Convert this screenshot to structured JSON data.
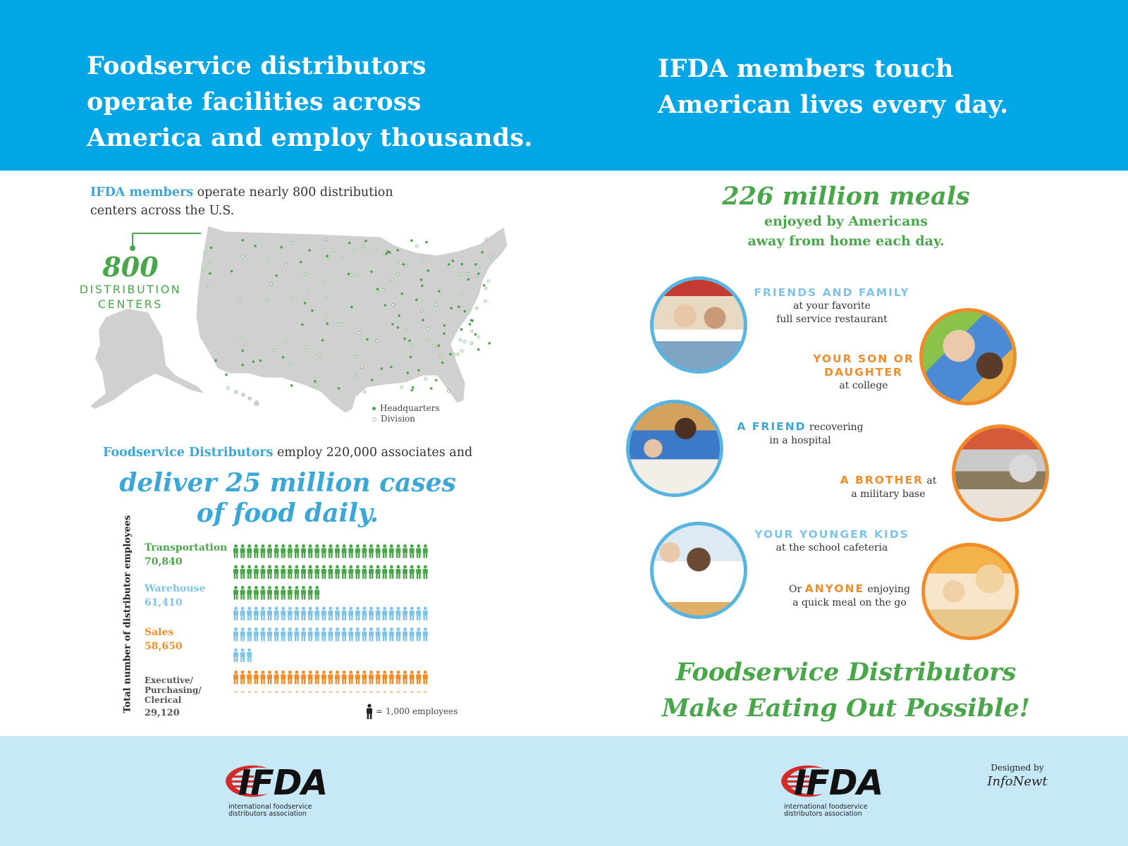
{
  "header": {
    "left_title": "Foodservice distributors\noperate facilities across\nAmerica and employ thousands.",
    "right_title": "IFDA members touch\nAmerican lives every day."
  },
  "colors": {
    "header_blue": "#00a6e6",
    "green": "#4aa64a",
    "light_blue": "#7fc4e6",
    "blue": "#3aa7d6",
    "orange": "#f08c2a",
    "gray": "#7a7a7a",
    "footer": "#c6e8f7",
    "logo_red": "#d42a2a"
  },
  "left": {
    "intro_highlight": "IFDA members",
    "intro_rest": " operate nearly 800 distribution centers across the U.S.",
    "callout_number": "800",
    "callout_label": "DISTRIBUTION\nCENTERS",
    "map_icon": "us-map-with-distribution-center-dots",
    "legend": [
      {
        "label": "Headquarters",
        "color": "#4aa64a"
      },
      {
        "label": "Division",
        "color": "#c8c8c8"
      }
    ],
    "employ_highlight": "Foodservice Distributors",
    "employ_rest": " employ 220,000 associates and",
    "deliver": "deliver 25 million cases\nof food daily."
  },
  "chart_data": {
    "type": "bar",
    "ylabel": "Total number of distributor employees",
    "unit_note": "= 1,000 employees",
    "categories": [
      "Transportation",
      "Warehouse",
      "Sales",
      "Executive/\nPurchasing/\nClerical"
    ],
    "values": [
      70840,
      61410,
      58650,
      29120
    ],
    "value_labels": [
      "70,840",
      "61,410",
      "58,650",
      "29,120"
    ],
    "colors": [
      "#4aa64a",
      "#7fc4e6",
      "#f08c2a",
      "#7a7a7a"
    ]
  },
  "right": {
    "meals_big": "226 million meals",
    "meals_sub": "enjoyed by Americans\naway from home each day.",
    "cap1": {
      "head": "FRIENDS AND FAMILY",
      "l1": "at your favorite",
      "l2": "full service restaurant"
    },
    "cap2": {
      "head1": "YOUR SON OR",
      "head2": "DAUGHTER",
      "l1": "at college"
    },
    "cap3": {
      "head": "A FRIEND",
      "tail": " recovering",
      "l2": "in a hospital"
    },
    "cap4": {
      "head": "A BROTHER",
      "tail": " at",
      "l2": "a military base"
    },
    "cap5": {
      "head": "YOUR YOUNGER KIDS",
      "l1": "at the school cafeteria"
    },
    "cap6": {
      "pre": "Or ",
      "head": "ANYONE",
      "tail": " enjoying",
      "l2": "a quick meal on the go"
    },
    "closing": "Foodservice Distributors\nMake Eating Out Possible!"
  },
  "footer": {
    "logo_word": "IFDA",
    "logo_sub": "international foodservice\ndistributors association",
    "designed_label": "Designed by",
    "designed_name": "InfoNewt"
  }
}
